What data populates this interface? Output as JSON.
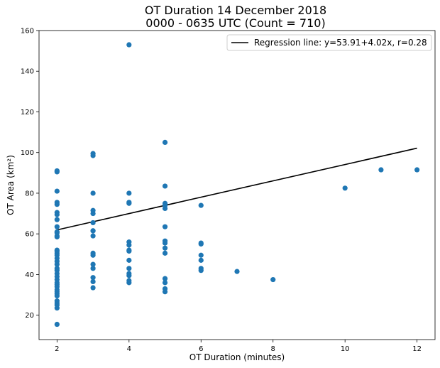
{
  "chart_data": {
    "type": "scatter",
    "title": "OT Duration 14 December 2018",
    "subtitle": "0000 - 0635 UTC (Count = 710)",
    "xlabel": "OT Duration (minutes)",
    "ylabel": "OT Area (km²)",
    "xlim": [
      1.5,
      12.5
    ],
    "ylim": [
      8,
      160
    ],
    "xticks": [
      2,
      4,
      6,
      8,
      10,
      12
    ],
    "yticks": [
      20,
      40,
      60,
      80,
      100,
      120,
      140,
      160
    ],
    "grid": false,
    "legend_placement": "top-right",
    "point_color": "#1f77b4",
    "line_color": "#000000",
    "series": [
      {
        "x": [
          2,
          2,
          2,
          2,
          2,
          2,
          2,
          2,
          2,
          2,
          2,
          2,
          2,
          2,
          2,
          2,
          2,
          2,
          2,
          2,
          2,
          2,
          2,
          2,
          2,
          2,
          2,
          2,
          2,
          2,
          2,
          2,
          2,
          2,
          2,
          2,
          2,
          3,
          3,
          3,
          3,
          3,
          3,
          3,
          3,
          3,
          3,
          3,
          3,
          3,
          3,
          3,
          3,
          4,
          4,
          4,
          4,
          4,
          4,
          4,
          4,
          4,
          4,
          4,
          4,
          4,
          4,
          5,
          5,
          5,
          5,
          5,
          5,
          5,
          5,
          5,
          5,
          5,
          5,
          5,
          5,
          6,
          6,
          6,
          6,
          6,
          6,
          6,
          7,
          8,
          10,
          11,
          12
        ],
        "y": [
          15.5,
          23.5,
          25,
          26,
          27,
          29.5,
          30.5,
          31.5,
          32.5,
          34,
          35,
          36,
          37.5,
          39,
          40.5,
          42,
          43,
          45,
          46.5,
          48,
          49.5,
          50.5,
          51.5,
          52,
          58.5,
          59,
          61,
          67,
          69.5,
          70.5,
          74.5,
          75.5,
          81,
          90.5,
          91,
          60.5,
          63.5,
          33.5,
          36.5,
          38.5,
          43,
          45,
          49.5,
          50.5,
          59,
          61.5,
          65.5,
          70,
          71.5,
          80,
          98.5,
          99.5,
          61.5,
          36,
          37,
          39.5,
          40.5,
          43,
          47,
          51.5,
          52,
          54.5,
          56,
          75,
          75.5,
          80,
          153,
          31.5,
          33,
          36,
          38,
          50.5,
          53,
          55.5,
          56.5,
          63.5,
          72.5,
          74,
          75,
          83.5,
          105,
          42,
          43,
          47,
          49.5,
          55,
          55.5,
          74,
          41.5,
          37.5,
          82.5,
          91.5,
          91.5
        ]
      }
    ],
    "regression": {
      "label": "Regression line: y=53.91+4.02x, r=0.28",
      "intercept": 53.91,
      "slope": 4.02,
      "x_range": [
        2,
        12
      ]
    }
  }
}
